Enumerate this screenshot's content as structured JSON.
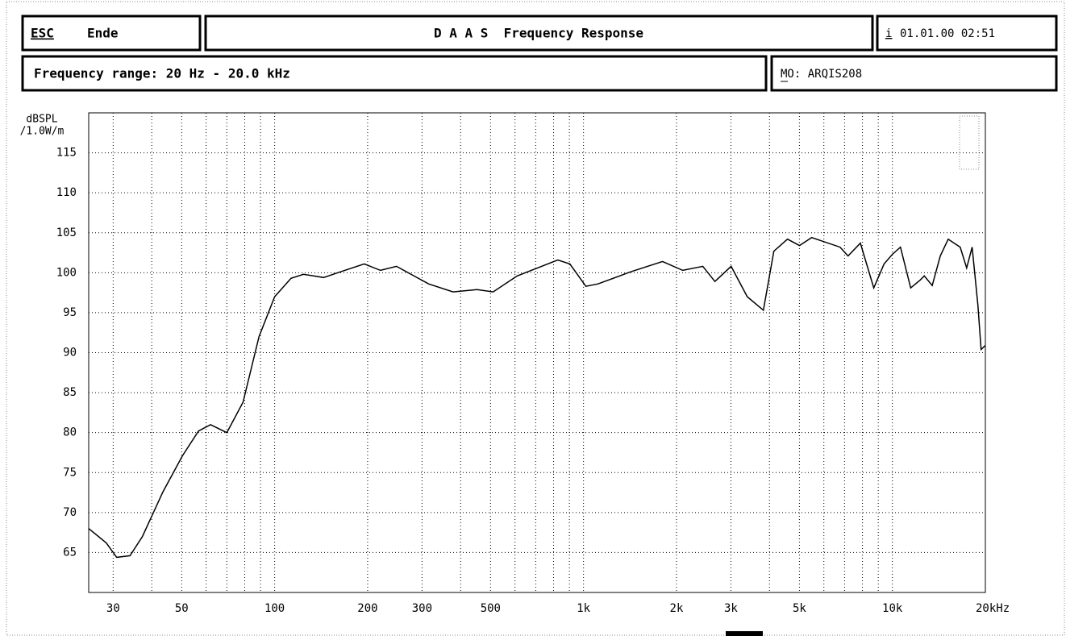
{
  "header": {
    "esc_key": "ESC",
    "esc_action": "Ende",
    "title": "D A A S  Frequency Response",
    "info_key": "i",
    "datetime": "01.01.00 02:51",
    "range": "Frequency range: 20 Hz - 20.0 kHz",
    "model": "MO: ARQIS208"
  },
  "chart_data": {
    "type": "line",
    "y_label_1": "dBSPL",
    "y_label_2": "/1.0W/m",
    "x": [
      25,
      28.5,
      30.8,
      34,
      37.3,
      43.5,
      50.3,
      56.7,
      62,
      70,
      79,
      89,
      100,
      113,
      124,
      144,
      163,
      195,
      220,
      248,
      315,
      378,
      452,
      510,
      610,
      825,
      903,
      1018,
      1114,
      1418,
      1802,
      2095,
      2434,
      2663,
      3005,
      3390,
      3822,
      4133,
      4575,
      5003,
      5478,
      6770,
      7186,
      7877,
      8702,
      9400,
      10000,
      10620,
      11460,
      12310,
      12680,
      13460,
      14290,
      15160,
      16580,
      17400,
      18120,
      18910,
      19370,
      20000
    ],
    "series": [
      {
        "color": "#000000",
        "values": [
          68.0,
          66.2,
          64.4,
          64.6,
          67.0,
          72.6,
          77.1,
          80.2,
          81.0,
          80.0,
          83.8,
          92.0,
          97.0,
          99.3,
          99.8,
          99.4,
          100.1,
          101.1,
          100.3,
          100.8,
          98.6,
          97.6,
          97.9,
          97.6,
          99.6,
          101.6,
          101.1,
          98.3,
          98.6,
          100.1,
          101.4,
          100.3,
          100.8,
          98.9,
          100.8,
          97.0,
          95.3,
          102.7,
          104.2,
          103.4,
          104.4,
          103.2,
          102.1,
          103.7,
          98.1,
          101.1,
          102.3,
          103.2,
          98.1,
          99.1,
          99.6,
          98.4,
          102.1,
          104.2,
          103.2,
          100.6,
          103.2,
          96.0,
          90.4,
          90.9
        ]
      }
    ],
    "xlim": [
      25,
      20000
    ],
    "log_x": true,
    "xticks": [
      30,
      50,
      100,
      200,
      300,
      500,
      {
        "value": 1000,
        "label": "1k"
      },
      {
        "value": 2000,
        "label": "2k"
      },
      {
        "value": 3000,
        "label": "3k"
      },
      {
        "value": 5000,
        "label": "5k"
      },
      {
        "value": 10000,
        "label": "10k"
      },
      {
        "value": 20000,
        "label": "20kHz"
      }
    ],
    "xgrid": [
      40,
      60,
      70,
      80,
      90,
      400,
      600,
      700,
      800,
      900,
      4000,
      6000,
      7000,
      8000,
      9000
    ],
    "ylim": [
      60,
      120
    ],
    "yticks": [
      65,
      70,
      75,
      80,
      85,
      90,
      95,
      100,
      105,
      110,
      115
    ],
    "grid": true
  }
}
